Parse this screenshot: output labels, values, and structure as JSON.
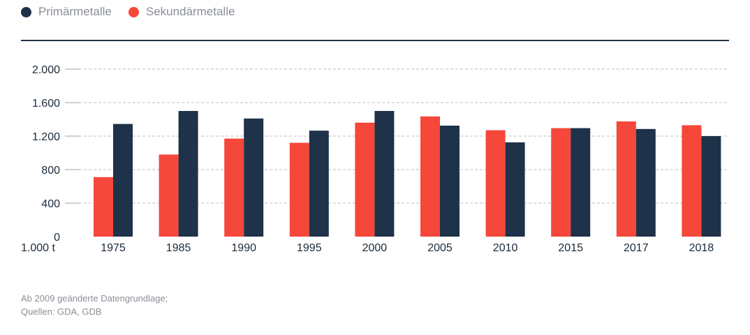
{
  "colors": {
    "primary": "#1e3249",
    "secondary": "#f5473a",
    "grid": "#b8bcc0",
    "text": "#1a2a3a",
    "muted": "#8a8f96"
  },
  "legend": [
    {
      "label": "Primärmetalle",
      "color": "#1e3249"
    },
    {
      "label": "Sekundärmetalle",
      "color": "#f5473a"
    }
  ],
  "footnote": {
    "line1": "Ab 2009 geänderte Datengrundlage;",
    "line2": "Quellen: GDA, GDB"
  },
  "chart_data": {
    "type": "bar",
    "categories": [
      "1975",
      "1985",
      "1990",
      "1995",
      "2000",
      "2005",
      "2010",
      "2015",
      "2017",
      "2018"
    ],
    "series": [
      {
        "name": "Sekundärmetalle",
        "values": [
          710,
          980,
          1170,
          1120,
          1360,
          1435,
          1270,
          1295,
          1375,
          1330
        ]
      },
      {
        "name": "Primärmetalle",
        "values": [
          1345,
          1500,
          1410,
          1265,
          1500,
          1325,
          1125,
          1295,
          1285,
          1200
        ]
      }
    ],
    "ylim": [
      0,
      2000
    ],
    "yticks": [
      0,
      400,
      800,
      1200,
      1600,
      2000
    ],
    "ytick_labels": [
      "0",
      "400",
      "800",
      "1.200",
      "1.600",
      "2.000"
    ],
    "unit_label": "1.000 t",
    "grid": true,
    "legend_position": "top-left"
  }
}
